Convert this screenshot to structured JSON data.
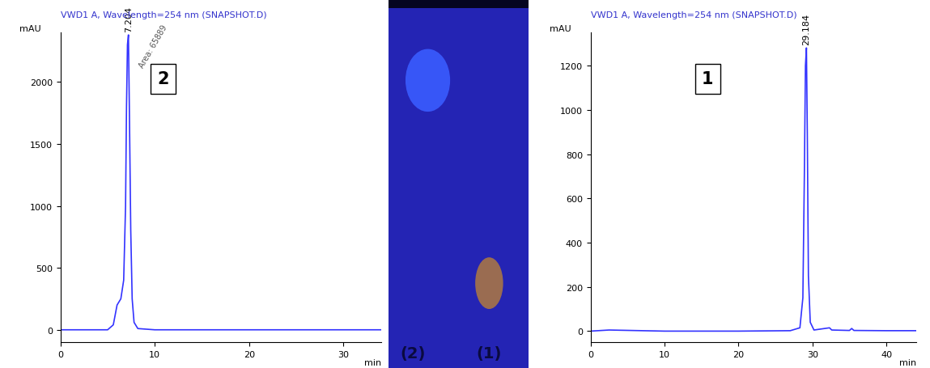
{
  "chart_data": [
    {
      "type": "line",
      "title": "VWD1 A, Wavelength=254 nm (SNAPSHOT.D)",
      "y_label": "mAU",
      "x_label": "min",
      "label": "2",
      "peak_label": "7.204",
      "area_label": "Area: 65889",
      "x": [
        0,
        2,
        5,
        5.6,
        6.0,
        6.4,
        6.7,
        6.9,
        7.0,
        7.1,
        7.204,
        7.3,
        7.45,
        7.6,
        7.8,
        8.2,
        10,
        20,
        30,
        34
      ],
      "values": [
        0,
        0,
        0,
        40,
        200,
        250,
        400,
        1000,
        1800,
        2300,
        2380,
        1800,
        800,
        250,
        60,
        10,
        0,
        0,
        0,
        0
      ],
      "color": "#3333ff",
      "xlim": [
        0,
        34
      ],
      "xticks": [
        0,
        10,
        20,
        30
      ],
      "ylim": [
        -100,
        2400
      ],
      "yticks": [
        0,
        500,
        1000,
        1500,
        2000
      ]
    },
    {
      "type": "line",
      "title": "VWD1 A, Wavelength=254 nm (SNAPSHOT.D)",
      "y_label": "mAU",
      "x_label": "min",
      "label": "1",
      "peak_label": "29.184",
      "x": [
        0,
        2.5,
        10,
        20,
        27,
        28.3,
        28.7,
        28.9,
        29.05,
        29.184,
        29.3,
        29.45,
        29.7,
        30.2,
        32.3,
        32.6,
        35,
        35.3,
        35.6,
        40,
        44
      ],
      "values": [
        0,
        5,
        0,
        0,
        2,
        15,
        150,
        700,
        1200,
        1280,
        900,
        250,
        40,
        5,
        15,
        5,
        3,
        12,
        3,
        2,
        2
      ],
      "color": "#3333ff",
      "xlim": [
        0,
        44
      ],
      "xticks": [
        0,
        10,
        20,
        30,
        40
      ],
      "ylim": [
        -50,
        1350
      ],
      "yticks": [
        0,
        200,
        400,
        600,
        800,
        1000,
        1200
      ]
    }
  ],
  "tlc_plate": {
    "labels": [
      "(2)",
      "(1)"
    ]
  }
}
